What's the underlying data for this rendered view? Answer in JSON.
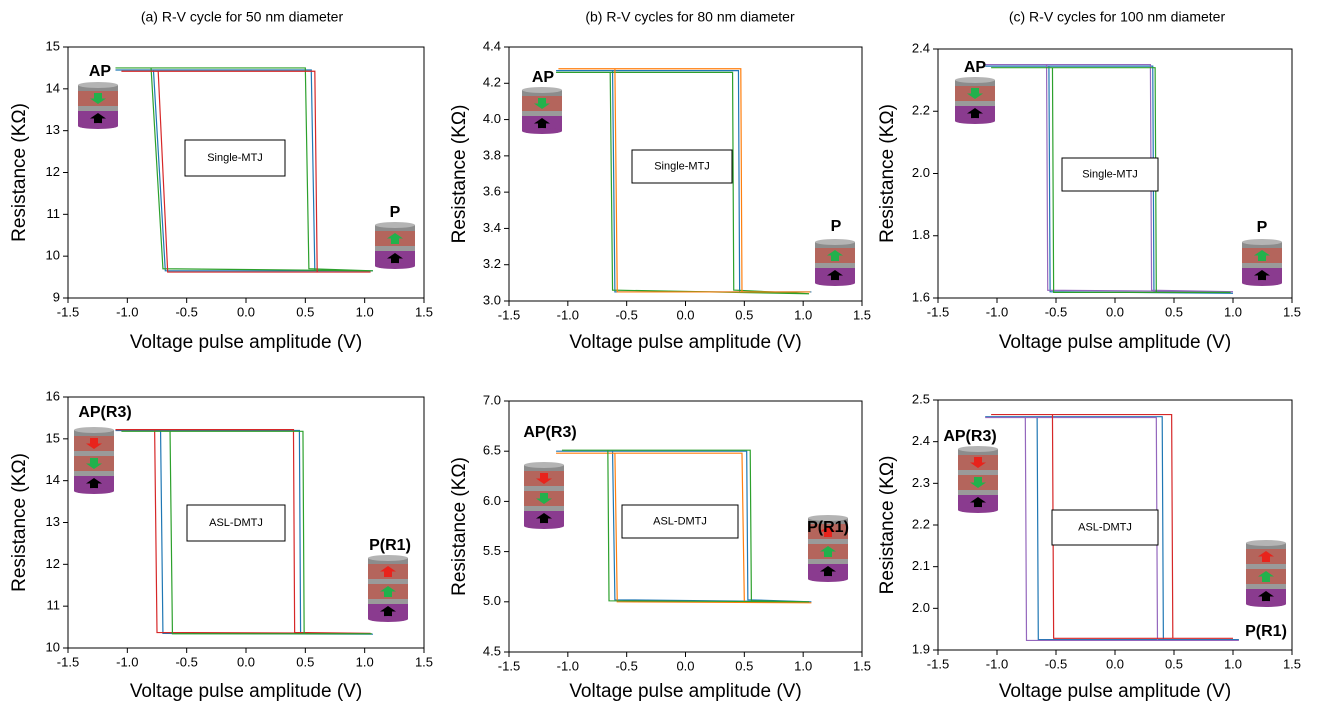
{
  "chart_data": [
    {
      "type": "line",
      "title": "(a) R-V cycle for 50 nm diameter",
      "xlabel": "Voltage pulse amplitude (V)",
      "ylabel": "Resistance (KΩ)",
      "xlim": [
        -1.5,
        1.5
      ],
      "xticks": [
        -1.5,
        {
          "value": -1,
          "label": "-1.0"
        },
        -0.5,
        {
          "value": 0,
          "label": "0.0"
        },
        0.5,
        {
          "value": 1,
          "label": "1.0"
        },
        1.5
      ],
      "ylim": [
        9,
        15
      ],
      "yticks": [
        9,
        10,
        11,
        12,
        13,
        14,
        15
      ],
      "annotations": {
        "device": "Single-MTJ",
        "states": [
          "AP",
          "P"
        ]
      },
      "series": [
        {
          "color": "#1f77b4",
          "x": [
            -1.1,
            0.55,
            0.58,
            1.07,
            -0.68,
            -0.78,
            -1.1
          ],
          "values": [
            14.45,
            14.45,
            9.65,
            9.65,
            9.65,
            14.45,
            14.45
          ]
        },
        {
          "color": "#2ca02c",
          "x": [
            -1.1,
            0.5,
            0.53,
            1.07,
            -0.7,
            -0.8,
            -1.1
          ],
          "values": [
            14.5,
            14.5,
            9.7,
            9.65,
            9.7,
            14.5,
            14.5
          ]
        },
        {
          "color": "#d62728",
          "x": [
            -1.05,
            0.58,
            0.6,
            1.05,
            -0.66,
            -0.74,
            -1.05
          ],
          "values": [
            14.42,
            14.42,
            9.62,
            9.62,
            9.62,
            14.42,
            14.42
          ]
        }
      ]
    },
    {
      "type": "line",
      "title": "(b) R-V cycles for 80 nm diameter",
      "xlabel": "Voltage pulse amplitude (V)",
      "ylabel": "Resistance (KΩ)",
      "xlim": [
        -1.5,
        1.5
      ],
      "xticks": [
        -1.5,
        {
          "value": -1,
          "label": "-1.0"
        },
        -0.5,
        {
          "value": 0,
          "label": "0.0"
        },
        0.5,
        {
          "value": 1,
          "label": "1.0"
        },
        1.5
      ],
      "ylim": [
        3,
        4.4
      ],
      "yticks": [
        {
          "value": 3,
          "label": "3.0"
        },
        3.2,
        3.4,
        3.6,
        3.8,
        {
          "value": 4,
          "label": "4.0"
        },
        4.2,
        4.4
      ],
      "annotations": {
        "device": "Single-MTJ",
        "states": [
          "AP",
          "P"
        ]
      },
      "series": [
        {
          "color": "#1f77b4",
          "x": [
            -1.1,
            0.45,
            0.46,
            1.07,
            -0.6,
            -0.62,
            -1.1
          ],
          "values": [
            4.27,
            4.27,
            3.05,
            3.05,
            3.05,
            4.27,
            4.27
          ]
        },
        {
          "color": "#2ca02c",
          "x": [
            -1.1,
            0.4,
            0.41,
            1.05,
            -0.62,
            -0.64,
            -1.1
          ],
          "values": [
            4.26,
            4.26,
            3.06,
            3.04,
            3.06,
            4.26,
            4.26
          ]
        },
        {
          "color": "#ff7f0e",
          "x": [
            -1.08,
            0.47,
            0.48,
            1.06,
            -0.58,
            -0.6,
            -1.08
          ],
          "values": [
            4.28,
            4.28,
            3.05,
            3.05,
            3.05,
            4.28,
            4.28
          ]
        }
      ]
    },
    {
      "type": "line",
      "title": "(c) R-V cycles for 100 nm diameter",
      "xlabel": "Voltage pulse amplitude (V)",
      "ylabel": "Resistance (KΩ)",
      "xlim": [
        -1.5,
        1.5
      ],
      "xticks": [
        -1.5,
        {
          "value": -1,
          "label": "-1.0"
        },
        -0.5,
        {
          "value": 0,
          "label": "0.0"
        },
        0.5,
        {
          "value": 1,
          "label": "1.0"
        },
        1.5
      ],
      "ylim": [
        1.6,
        2.4
      ],
      "yticks": [
        1.6,
        1.8,
        {
          "value": 2,
          "label": "2.0"
        },
        2.2,
        2.4
      ],
      "annotations": {
        "device": "Single-MTJ",
        "states": [
          "AP",
          "P"
        ]
      },
      "series": [
        {
          "color": "#1f77b4",
          "x": [
            -1.1,
            0.32,
            0.33,
            1.0,
            -0.55,
            -0.56,
            -1.1
          ],
          "values": [
            2.345,
            2.345,
            1.62,
            1.615,
            1.62,
            2.345,
            2.345
          ]
        },
        {
          "color": "#9467bd",
          "x": [
            -1.1,
            0.3,
            0.31,
            1.0,
            -0.57,
            -0.58,
            -1.1
          ],
          "values": [
            2.35,
            2.35,
            1.625,
            1.62,
            1.625,
            2.35,
            2.35
          ]
        },
        {
          "color": "#2ca02c",
          "x": [
            -1.05,
            0.34,
            0.35,
            0.98,
            -0.52,
            -0.53,
            -1.05
          ],
          "values": [
            2.34,
            2.34,
            1.618,
            1.618,
            1.618,
            2.34,
            2.34
          ]
        }
      ]
    },
    {
      "type": "line",
      "xlabel": "Voltage pulse amplitude (V)",
      "ylabel": "Resistance (KΩ)",
      "xlim": [
        -1.5,
        1.5
      ],
      "xticks": [
        -1.5,
        {
          "value": -1,
          "label": "-1.0"
        },
        -0.5,
        {
          "value": 0,
          "label": "0.0"
        },
        0.5,
        {
          "value": 1,
          "label": "1.0"
        },
        1.5
      ],
      "ylim": [
        10,
        16
      ],
      "yticks": [
        10,
        11,
        12,
        13,
        14,
        15,
        16
      ],
      "annotations": {
        "device": "ASL-DMTJ",
        "states": [
          "AP(R3)",
          "P(R1)"
        ]
      },
      "series": [
        {
          "color": "#1f77b4",
          "x": [
            -1.1,
            0.45,
            0.46,
            1.07,
            -0.7,
            -0.72,
            -1.1
          ],
          "values": [
            15.2,
            15.2,
            10.35,
            10.33,
            10.35,
            15.2,
            15.2
          ]
        },
        {
          "color": "#d62728",
          "x": [
            -1.1,
            0.4,
            0.41,
            1.05,
            -0.75,
            -0.77,
            -1.1
          ],
          "values": [
            15.22,
            15.22,
            10.37,
            10.35,
            10.37,
            15.22,
            15.22
          ]
        },
        {
          "color": "#2ca02c",
          "x": [
            -1.05,
            0.48,
            0.49,
            1.06,
            -0.62,
            -0.64,
            -1.05
          ],
          "values": [
            15.18,
            15.18,
            10.34,
            10.34,
            10.34,
            15.18,
            15.18
          ]
        }
      ]
    },
    {
      "type": "line",
      "xlabel": "Voltage pulse amplitude (V)",
      "ylabel": "Resistance (KΩ)",
      "xlim": [
        -1.5,
        1.5
      ],
      "xticks": [
        -1.5,
        {
          "value": -1,
          "label": "-1.0"
        },
        -0.5,
        {
          "value": 0,
          "label": "0.0"
        },
        0.5,
        {
          "value": 1,
          "label": "1.0"
        },
        1.5
      ],
      "ylim": [
        4.5,
        7
      ],
      "yticks": [
        4.5,
        {
          "value": 5,
          "label": "5.0"
        },
        5.5,
        {
          "value": 6,
          "label": "6.0"
        },
        6.5,
        {
          "value": 7,
          "label": "7.0"
        }
      ],
      "annotations": {
        "device": "ASL-DMTJ",
        "states": [
          "AP(R3)",
          "P(R1)"
        ]
      },
      "series": [
        {
          "color": "#1f77b4",
          "x": [
            -1.1,
            0.52,
            0.53,
            1.07,
            -0.6,
            -0.62,
            -1.1
          ],
          "values": [
            6.5,
            6.5,
            5.02,
            5.0,
            5.02,
            6.5,
            6.5
          ]
        },
        {
          "color": "#ff7f0e",
          "x": [
            -1.1,
            0.48,
            0.5,
            1.07,
            -0.58,
            -0.6,
            -1.1
          ],
          "values": [
            6.48,
            6.48,
            5.0,
            4.99,
            5.0,
            6.48,
            6.48
          ]
        },
        {
          "color": "#2ca02c",
          "x": [
            -1.05,
            0.55,
            0.56,
            1.05,
            -0.65,
            -0.66,
            -1.05
          ],
          "values": [
            6.51,
            6.51,
            5.01,
            5.0,
            5.01,
            6.51,
            6.51
          ]
        }
      ]
    },
    {
      "type": "line",
      "xlabel": "Voltage pulse amplitude (V)",
      "ylabel": "Resistance (KΩ)",
      "xlim": [
        -1.5,
        1.5
      ],
      "xticks": [
        -1.5,
        {
          "value": -1,
          "label": "-1.0"
        },
        -0.5,
        {
          "value": 0,
          "label": "0.0"
        },
        0.5,
        {
          "value": 1,
          "label": "1.0"
        },
        1.5
      ],
      "ylim": [
        1.9,
        2.5
      ],
      "yticks": [
        1.9,
        {
          "value": 2,
          "label": "2.0"
        },
        2.1,
        2.2,
        2.3,
        2.4,
        2.5
      ],
      "annotations": {
        "device": "ASL-DMTJ",
        "states": [
          "AP(R3)",
          "P(R1)"
        ]
      },
      "series": [
        {
          "color": "#1f77b4",
          "x": [
            -1.1,
            0.4,
            0.41,
            1.05,
            -0.65,
            -0.66,
            -1.1
          ],
          "values": [
            2.46,
            2.46,
            1.925,
            1.925,
            1.925,
            2.46,
            2.46
          ]
        },
        {
          "color": "#9467bd",
          "x": [
            -1.1,
            0.35,
            0.36,
            1.05,
            -0.75,
            -0.76,
            -1.1
          ],
          "values": [
            2.458,
            2.458,
            1.923,
            1.923,
            1.923,
            2.458,
            2.458
          ]
        },
        {
          "color": "#d62728",
          "x": [
            -1.05,
            0.48,
            0.49,
            1.0,
            -0.52,
            -0.53,
            -1.05
          ],
          "values": [
            2.465,
            2.465,
            1.928,
            1.928,
            1.928,
            2.465,
            2.465
          ]
        }
      ]
    }
  ]
}
